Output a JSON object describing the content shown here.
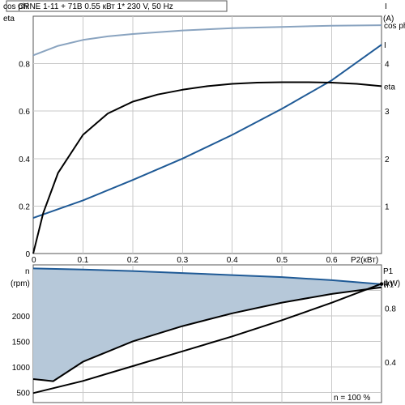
{
  "chart_data": [
    {
      "type": "line",
      "title": "CRNE 1-11 + 71B    0.55 кВт    1* 230 V, 50 Hz",
      "xlabel": "P2(кВт)",
      "xlim": [
        0,
        0.7
      ],
      "x_ticks": [
        "0",
        "0.1",
        "0.2",
        "0.3",
        "0.4",
        "0.5",
        "0.6"
      ],
      "ylabel_left": [
        "cos phi",
        "eta"
      ],
      "ylim_left": [
        0,
        1.0
      ],
      "y_ticks_left": [
        "0",
        "0.2",
        "0.4",
        "0.6",
        "0.8"
      ],
      "ylabel_right": [
        "I",
        "(A)"
      ],
      "ylim_right": [
        0,
        5.0
      ],
      "y_ticks_right": [
        "1",
        "2",
        "3",
        "4"
      ],
      "grid": true,
      "series": [
        {
          "name": "cos phi",
          "axis": "left",
          "color": "#8aa4c0",
          "x": [
            0,
            0.05,
            0.1,
            0.15,
            0.2,
            0.3,
            0.4,
            0.5,
            0.6,
            0.7
          ],
          "y": [
            0.835,
            0.875,
            0.9,
            0.915,
            0.925,
            0.94,
            0.95,
            0.955,
            0.96,
            0.962
          ]
        },
        {
          "name": "I",
          "axis": "right",
          "color": "#1f5a96",
          "x": [
            0,
            0.1,
            0.2,
            0.3,
            0.4,
            0.5,
            0.6,
            0.7
          ],
          "y": [
            0.75,
            1.12,
            1.55,
            2.0,
            2.5,
            3.05,
            3.65,
            4.4
          ]
        },
        {
          "name": "eta",
          "axis": "left",
          "color": "#000000",
          "x": [
            0,
            0.02,
            0.05,
            0.1,
            0.15,
            0.2,
            0.25,
            0.3,
            0.35,
            0.4,
            0.45,
            0.5,
            0.55,
            0.6,
            0.65,
            0.7
          ],
          "y": [
            0,
            0.17,
            0.34,
            0.5,
            0.59,
            0.64,
            0.67,
            0.69,
            0.705,
            0.715,
            0.72,
            0.722,
            0.722,
            0.72,
            0.715,
            0.705
          ]
        }
      ]
    },
    {
      "type": "area",
      "xlabel": "n   = 100 %",
      "xlim": [
        0,
        0.7
      ],
      "ylabel_left": [
        "n",
        "(rpm)"
      ],
      "ylim_left": [
        300,
        3000
      ],
      "y_ticks_left": [
        "500",
        "1000",
        "1500",
        "2000"
      ],
      "ylabel_right": [
        "P1",
        "(kW)"
      ],
      "ylim_right": [
        0.1,
        1.12
      ],
      "y_ticks_right": [
        "0.4",
        "0.8"
      ],
      "grid": true,
      "fill_color": "#b6c8d9",
      "series": [
        {
          "name": "n",
          "axis": "left",
          "color": "#1f5a96",
          "x": [
            0,
            0.1,
            0.2,
            0.3,
            0.4,
            0.5,
            0.6,
            0.7
          ],
          "y": [
            2930,
            2910,
            2880,
            2840,
            2800,
            2760,
            2700,
            2620
          ]
        },
        {
          "name": "n (min)",
          "axis": "left",
          "color": "#000000",
          "x": [
            0,
            0.02,
            0.04,
            0.1,
            0.2,
            0.3,
            0.4,
            0.5,
            0.6,
            0.7
          ],
          "y": [
            760,
            740,
            720,
            1100,
            1500,
            1800,
            2050,
            2260,
            2430,
            2560
          ]
        },
        {
          "name": "P1",
          "axis": "right",
          "color": "#000000",
          "x": [
            0,
            0.1,
            0.2,
            0.3,
            0.4,
            0.5,
            0.6,
            0.7
          ],
          "y": [
            0.17,
            0.26,
            0.37,
            0.48,
            0.59,
            0.71,
            0.84,
            0.98
          ]
        }
      ]
    }
  ]
}
